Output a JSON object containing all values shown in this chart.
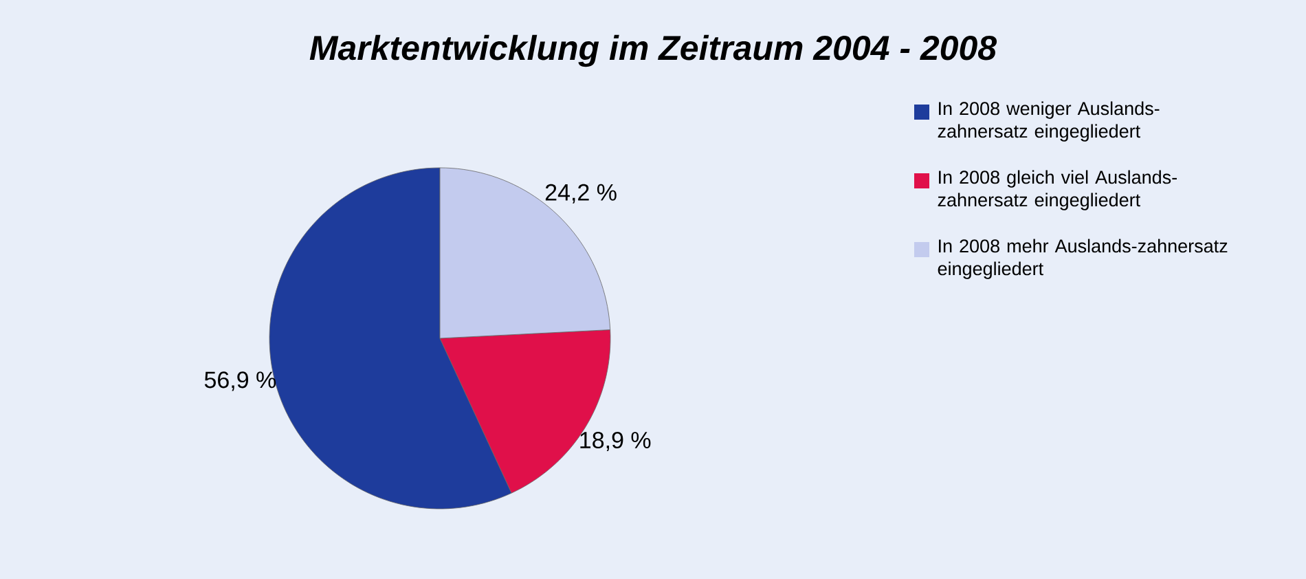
{
  "chart_data": {
    "type": "pie",
    "title": "Marktentwicklung im Zeitraum 2004 - 2008",
    "categories": [
      "In 2008 weniger Auslands-zahnersatz eingegliedert",
      "In 2008 gleich viel Auslands-zahnersatz eingegliedert",
      "In 2008 mehr Auslands-zahnersatz eingegliedert"
    ],
    "values": [
      56.9,
      18.9,
      24.2
    ],
    "value_labels": [
      "56,9 %",
      "18,9 %",
      "24,2 %"
    ],
    "colors": [
      "#1e3c9c",
      "#e0104a",
      "#c3cbee"
    ],
    "legend": "right"
  }
}
